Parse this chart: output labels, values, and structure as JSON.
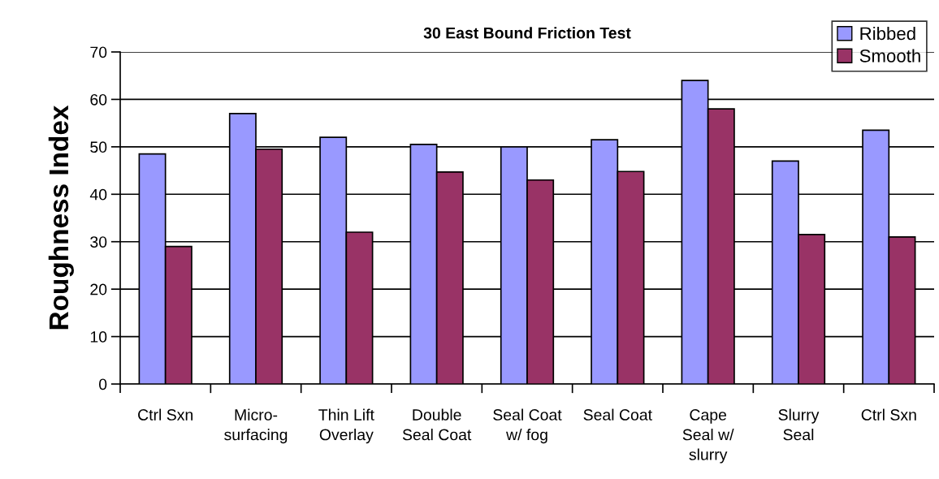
{
  "chart_data": {
    "type": "bar",
    "title": "30 East Bound Friction Test",
    "ylabel": "Roughness Index",
    "categories": [
      "Ctrl Sxn",
      "Micro-\nsurfacing",
      "Thin Lift\nOverlay",
      "Double\nSeal Coat",
      "Seal Coat\nw/ fog",
      "Seal Coat",
      "Cape\nSeal w/\nslurry",
      "Slurry\nSeal",
      "Ctrl Sxn"
    ],
    "series": [
      {
        "name": "Ribbed",
        "color": "#9999ff",
        "values": [
          48.5,
          57,
          52,
          50.5,
          50,
          51.5,
          64,
          47,
          53.5
        ]
      },
      {
        "name": "Smooth",
        "color": "#993366",
        "values": [
          29,
          49.5,
          32,
          44.7,
          43,
          44.8,
          58,
          31.5,
          31
        ]
      }
    ],
    "ylim": [
      0,
      70
    ],
    "yticks": [
      0,
      10,
      20,
      30,
      40,
      50,
      60,
      70
    ],
    "grid": "y",
    "legend": "top right"
  }
}
